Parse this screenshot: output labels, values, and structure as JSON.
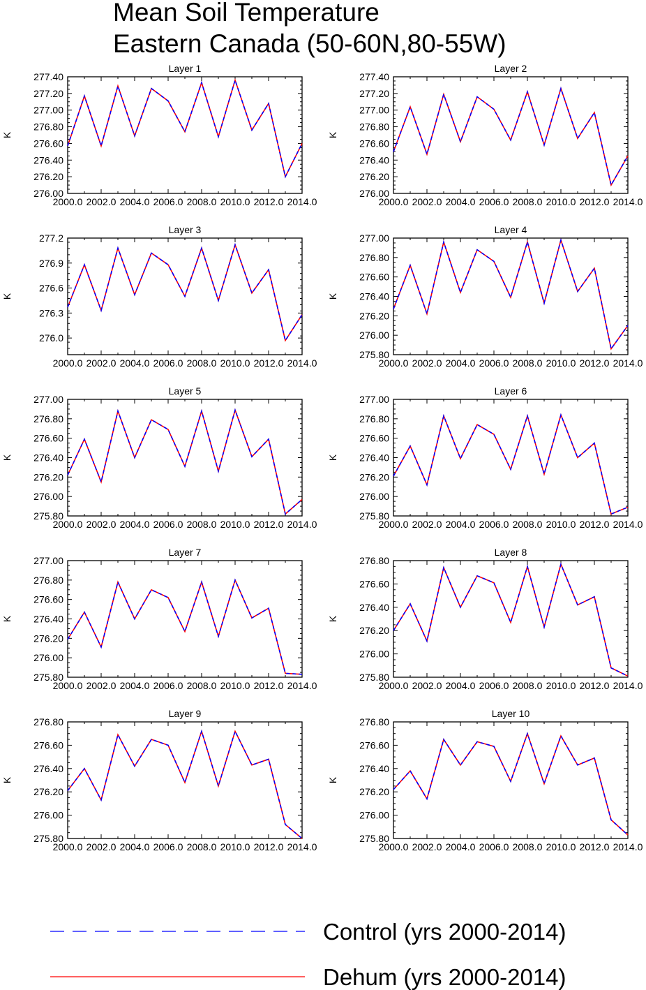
{
  "figure": {
    "title_lines": [
      "Mean Soil Temperature",
      "Eastern Canada (50-60N,80-55W)"
    ]
  },
  "chart_data": [
    {
      "type": "line",
      "title": "Layer 1",
      "ylabel": "K",
      "xlim": [
        2000,
        2014
      ],
      "ylim": [
        276.0,
        277.4
      ],
      "x_ticks": [
        "2000.0",
        "2002.0",
        "2004.0",
        "2006.0",
        "2008.0",
        "2010.0",
        "2012.0",
        "2014.0"
      ],
      "y_ticks": [
        "276.00",
        "276.20",
        "276.40",
        "276.60",
        "276.80",
        "277.00",
        "277.20",
        "277.40"
      ],
      "x": [
        2000,
        2001,
        2002,
        2003,
        2004,
        2005,
        2006,
        2007,
        2008,
        2009,
        2010,
        2011,
        2012,
        2013,
        2014
      ],
      "series": [
        {
          "name": "Control (yrs 2000-2014)",
          "color": "#0000ff",
          "dash": "dashed",
          "values": [
            276.57,
            277.17,
            276.57,
            277.29,
            276.69,
            277.26,
            277.11,
            276.74,
            277.33,
            276.68,
            277.36,
            276.76,
            277.08,
            276.2,
            276.6
          ]
        },
        {
          "name": "Dehum (yrs 2000-2014)",
          "color": "#ff0000",
          "dash": "solid",
          "values": [
            276.57,
            277.17,
            276.57,
            277.29,
            276.69,
            277.26,
            277.11,
            276.74,
            277.33,
            276.68,
            277.36,
            276.76,
            277.08,
            276.2,
            276.6
          ]
        }
      ]
    },
    {
      "type": "line",
      "title": "Layer 2",
      "ylabel": "K",
      "xlim": [
        2000,
        2014
      ],
      "ylim": [
        276.0,
        277.4
      ],
      "x_ticks": [
        "2000.0",
        "2002.0",
        "2004.0",
        "2006.0",
        "2008.0",
        "2010.0",
        "2012.0",
        "2014.0"
      ],
      "y_ticks": [
        "276.00",
        "276.20",
        "276.40",
        "276.60",
        "276.80",
        "277.00",
        "277.20",
        "277.40"
      ],
      "x": [
        2000,
        2001,
        2002,
        2003,
        2004,
        2005,
        2006,
        2007,
        2008,
        2009,
        2010,
        2011,
        2012,
        2013,
        2014
      ],
      "series": [
        {
          "name": "Control (yrs 2000-2014)",
          "color": "#0000ff",
          "dash": "dashed",
          "values": [
            276.5,
            277.04,
            276.47,
            277.19,
            276.62,
            277.16,
            277.01,
            276.64,
            277.22,
            276.58,
            277.26,
            276.66,
            276.97,
            276.1,
            276.45
          ]
        },
        {
          "name": "Dehum (yrs 2000-2014)",
          "color": "#ff0000",
          "dash": "solid",
          "values": [
            276.5,
            277.04,
            276.47,
            277.19,
            276.62,
            277.16,
            277.01,
            276.64,
            277.22,
            276.58,
            277.26,
            276.66,
            276.97,
            276.1,
            276.45
          ]
        }
      ]
    },
    {
      "type": "line",
      "title": "Layer 3",
      "ylabel": "K",
      "xlim": [
        2000,
        2014
      ],
      "ylim": [
        275.8,
        277.2
      ],
      "x_ticks": [
        "2000.0",
        "2002.0",
        "2004.0",
        "2006.0",
        "2008.0",
        "2010.0",
        "2012.0",
        "2014.0"
      ],
      "y_ticks": [
        "276.0",
        "276.3",
        "276.6",
        "276.9",
        "277.2"
      ],
      "x": [
        2000,
        2001,
        2002,
        2003,
        2004,
        2005,
        2006,
        2007,
        2008,
        2009,
        2010,
        2011,
        2012,
        2013,
        2014
      ],
      "series": [
        {
          "name": "Control (yrs 2000-2014)",
          "color": "#0000ff",
          "dash": "dashed",
          "values": [
            276.37,
            276.88,
            276.33,
            277.08,
            276.52,
            277.02,
            276.88,
            276.5,
            277.08,
            276.45,
            277.12,
            276.54,
            276.82,
            275.97,
            276.28
          ]
        },
        {
          "name": "Dehum (yrs 2000-2014)",
          "color": "#ff0000",
          "dash": "solid",
          "values": [
            276.37,
            276.88,
            276.33,
            277.08,
            276.52,
            277.02,
            276.88,
            276.5,
            277.08,
            276.45,
            277.12,
            276.54,
            276.82,
            275.97,
            276.28
          ]
        }
      ]
    },
    {
      "type": "line",
      "title": "Layer 4",
      "ylabel": "K",
      "xlim": [
        2000,
        2014
      ],
      "ylim": [
        275.8,
        277.0
      ],
      "x_ticks": [
        "2000.0",
        "2002.0",
        "2004.0",
        "2006.0",
        "2008.0",
        "2010.0",
        "2012.0",
        "2014.0"
      ],
      "y_ticks": [
        "275.80",
        "276.00",
        "276.20",
        "276.40",
        "276.60",
        "276.80",
        "277.00"
      ],
      "x": [
        2000,
        2001,
        2002,
        2003,
        2004,
        2005,
        2006,
        2007,
        2008,
        2009,
        2010,
        2011,
        2012,
        2013,
        2014
      ],
      "series": [
        {
          "name": "Control (yrs 2000-2014)",
          "color": "#0000ff",
          "dash": "dashed",
          "values": [
            276.27,
            276.72,
            276.22,
            276.96,
            276.44,
            276.88,
            276.76,
            276.39,
            276.96,
            276.33,
            276.98,
            276.45,
            276.69,
            275.86,
            276.1
          ]
        },
        {
          "name": "Dehum (yrs 2000-2014)",
          "color": "#ff0000",
          "dash": "solid",
          "values": [
            276.27,
            276.72,
            276.22,
            276.96,
            276.44,
            276.88,
            276.76,
            276.39,
            276.96,
            276.33,
            276.98,
            276.45,
            276.69,
            275.86,
            276.1
          ]
        }
      ]
    },
    {
      "type": "line",
      "title": "Layer 5",
      "ylabel": "K",
      "xlim": [
        2000,
        2014
      ],
      "ylim": [
        275.8,
        277.0
      ],
      "x_ticks": [
        "2000.0",
        "2002.0",
        "2004.0",
        "2006.0",
        "2008.0",
        "2010.0",
        "2012.0",
        "2014.0"
      ],
      "y_ticks": [
        "275.80",
        "276.00",
        "276.20",
        "276.40",
        "276.60",
        "276.80",
        "277.00"
      ],
      "x": [
        2000,
        2001,
        2002,
        2003,
        2004,
        2005,
        2006,
        2007,
        2008,
        2009,
        2010,
        2011,
        2012,
        2013,
        2014
      ],
      "series": [
        {
          "name": "Control (yrs 2000-2014)",
          "color": "#0000ff",
          "dash": "dashed",
          "values": [
            276.22,
            276.59,
            276.15,
            276.88,
            276.4,
            276.79,
            276.69,
            276.31,
            276.88,
            276.26,
            276.89,
            276.41,
            276.59,
            275.82,
            275.97
          ]
        },
        {
          "name": "Dehum (yrs 2000-2014)",
          "color": "#ff0000",
          "dash": "solid",
          "values": [
            276.22,
            276.59,
            276.15,
            276.88,
            276.4,
            276.79,
            276.69,
            276.31,
            276.88,
            276.26,
            276.89,
            276.41,
            276.59,
            275.82,
            275.97
          ]
        }
      ]
    },
    {
      "type": "line",
      "title": "Layer 6",
      "ylabel": "K",
      "xlim": [
        2000,
        2014
      ],
      "ylim": [
        275.8,
        277.0
      ],
      "x_ticks": [
        "2000.0",
        "2002.0",
        "2004.0",
        "2006.0",
        "2008.0",
        "2010.0",
        "2012.0",
        "2014.0"
      ],
      "y_ticks": [
        "275.80",
        "276.00",
        "276.20",
        "276.40",
        "276.60",
        "276.80",
        "277.00"
      ],
      "x": [
        2000,
        2001,
        2002,
        2003,
        2004,
        2005,
        2006,
        2007,
        2008,
        2009,
        2010,
        2011,
        2012,
        2013,
        2014
      ],
      "series": [
        {
          "name": "Control (yrs 2000-2014)",
          "color": "#0000ff",
          "dash": "dashed",
          "values": [
            276.21,
            276.52,
            276.12,
            276.83,
            276.39,
            276.74,
            276.64,
            276.28,
            276.83,
            276.23,
            276.84,
            276.4,
            276.55,
            275.82,
            275.89
          ]
        },
        {
          "name": "Dehum (yrs 2000-2014)",
          "color": "#ff0000",
          "dash": "solid",
          "values": [
            276.21,
            276.52,
            276.12,
            276.83,
            276.39,
            276.74,
            276.64,
            276.28,
            276.83,
            276.23,
            276.84,
            276.4,
            276.55,
            275.82,
            275.89
          ]
        }
      ]
    },
    {
      "type": "line",
      "title": "Layer 7",
      "ylabel": "K",
      "xlim": [
        2000,
        2014
      ],
      "ylim": [
        275.8,
        277.0
      ],
      "x_ticks": [
        "2000.0",
        "2002.0",
        "2004.0",
        "2006.0",
        "2008.0",
        "2010.0",
        "2012.0",
        "2014.0"
      ],
      "y_ticks": [
        "275.80",
        "276.00",
        "276.20",
        "276.40",
        "276.60",
        "276.80",
        "277.00"
      ],
      "x": [
        2000,
        2001,
        2002,
        2003,
        2004,
        2005,
        2006,
        2007,
        2008,
        2009,
        2010,
        2011,
        2012,
        2013,
        2014
      ],
      "series": [
        {
          "name": "Control (yrs 2000-2014)",
          "color": "#0000ff",
          "dash": "dashed",
          "values": [
            276.19,
            276.47,
            276.11,
            276.78,
            276.4,
            276.7,
            276.62,
            276.27,
            276.78,
            276.22,
            276.8,
            276.41,
            276.51,
            275.84,
            275.83
          ]
        },
        {
          "name": "Dehum (yrs 2000-2014)",
          "color": "#ff0000",
          "dash": "solid",
          "values": [
            276.19,
            276.47,
            276.11,
            276.78,
            276.4,
            276.7,
            276.62,
            276.27,
            276.78,
            276.22,
            276.8,
            276.41,
            276.51,
            275.84,
            275.83
          ]
        }
      ]
    },
    {
      "type": "line",
      "title": "Layer 8",
      "ylabel": "K",
      "xlim": [
        2000,
        2014
      ],
      "ylim": [
        275.8,
        276.8
      ],
      "x_ticks": [
        "2000.0",
        "2002.0",
        "2004.0",
        "2006.0",
        "2008.0",
        "2010.0",
        "2012.0",
        "2014.0"
      ],
      "y_ticks": [
        "275.80",
        "276.00",
        "276.20",
        "276.40",
        "276.60",
        "276.80"
      ],
      "x": [
        2000,
        2001,
        2002,
        2003,
        2004,
        2005,
        2006,
        2007,
        2008,
        2009,
        2010,
        2011,
        2012,
        2013,
        2014
      ],
      "series": [
        {
          "name": "Control (yrs 2000-2014)",
          "color": "#0000ff",
          "dash": "dashed",
          "values": [
            276.2,
            276.43,
            276.11,
            276.74,
            276.4,
            276.67,
            276.61,
            276.27,
            276.75,
            276.23,
            276.77,
            276.42,
            276.49,
            275.88,
            275.81
          ]
        },
        {
          "name": "Dehum (yrs 2000-2014)",
          "color": "#ff0000",
          "dash": "solid",
          "values": [
            276.2,
            276.43,
            276.11,
            276.74,
            276.4,
            276.67,
            276.61,
            276.27,
            276.75,
            276.23,
            276.77,
            276.42,
            276.49,
            275.88,
            275.81
          ]
        }
      ]
    },
    {
      "type": "line",
      "title": "Layer 9",
      "ylabel": "K",
      "xlim": [
        2000,
        2014
      ],
      "ylim": [
        275.8,
        276.8
      ],
      "x_ticks": [
        "2000.0",
        "2002.0",
        "2004.0",
        "2006.0",
        "2008.0",
        "2010.0",
        "2012.0",
        "2014.0"
      ],
      "y_ticks": [
        "275.80",
        "276.00",
        "276.20",
        "276.40",
        "276.60",
        "276.80"
      ],
      "x": [
        2000,
        2001,
        2002,
        2003,
        2004,
        2005,
        2006,
        2007,
        2008,
        2009,
        2010,
        2011,
        2012,
        2013,
        2014
      ],
      "series": [
        {
          "name": "Control (yrs 2000-2014)",
          "color": "#0000ff",
          "dash": "dashed",
          "values": [
            276.21,
            276.4,
            276.13,
            276.69,
            276.42,
            276.65,
            276.6,
            276.28,
            276.72,
            276.25,
            276.72,
            276.43,
            276.48,
            275.92,
            275.8
          ]
        },
        {
          "name": "Dehum (yrs 2000-2014)",
          "color": "#ff0000",
          "dash": "solid",
          "values": [
            276.21,
            276.4,
            276.13,
            276.69,
            276.42,
            276.65,
            276.6,
            276.28,
            276.72,
            276.25,
            276.72,
            276.43,
            276.48,
            275.92,
            275.8
          ]
        }
      ]
    },
    {
      "type": "line",
      "title": "Layer 10",
      "ylabel": "K",
      "xlim": [
        2000,
        2014
      ],
      "ylim": [
        275.8,
        276.8
      ],
      "x_ticks": [
        "2000.0",
        "2002.0",
        "2004.0",
        "2006.0",
        "2008.0",
        "2010.0",
        "2012.0",
        "2014.0"
      ],
      "y_ticks": [
        "275.80",
        "276.00",
        "276.20",
        "276.40",
        "276.60",
        "276.80"
      ],
      "x": [
        2000,
        2001,
        2002,
        2003,
        2004,
        2005,
        2006,
        2007,
        2008,
        2009,
        2010,
        2011,
        2012,
        2013,
        2014
      ],
      "series": [
        {
          "name": "Control (yrs 2000-2014)",
          "color": "#0000ff",
          "dash": "dashed",
          "values": [
            276.22,
            276.38,
            276.14,
            276.65,
            276.43,
            276.63,
            276.59,
            276.29,
            276.7,
            276.27,
            276.68,
            276.43,
            276.49,
            275.96,
            275.83
          ]
        },
        {
          "name": "Dehum (yrs 2000-2014)",
          "color": "#ff0000",
          "dash": "solid",
          "values": [
            276.22,
            276.38,
            276.14,
            276.65,
            276.43,
            276.63,
            276.59,
            276.29,
            276.7,
            276.27,
            276.68,
            276.43,
            276.49,
            275.96,
            275.83
          ]
        }
      ]
    }
  ],
  "legend": {
    "entries": [
      {
        "label": "Control (yrs 2000-2014)",
        "color": "#0000ff",
        "dash": "dashed"
      },
      {
        "label": "Dehum (yrs 2000-2014)",
        "color": "#ff0000",
        "dash": "solid"
      }
    ]
  }
}
